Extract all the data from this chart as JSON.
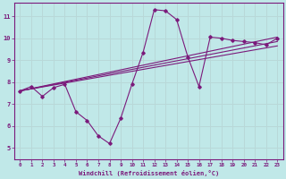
{
  "xlabel": "Windchill (Refroidissement éolien,°C)",
  "bg_color": "#c0e8e8",
  "line_color": "#7b1a7b",
  "grid_color": "#aad4d4",
  "xlim": [
    -0.5,
    23.5
  ],
  "ylim": [
    4.5,
    11.6
  ],
  "yticks": [
    5,
    6,
    7,
    8,
    9,
    10,
    11
  ],
  "xticks": [
    0,
    1,
    2,
    3,
    4,
    5,
    6,
    7,
    8,
    9,
    10,
    11,
    12,
    13,
    14,
    15,
    16,
    17,
    18,
    19,
    20,
    21,
    22,
    23
  ],
  "line1_x": [
    0,
    1,
    2,
    3,
    4,
    5,
    6,
    7,
    8,
    9,
    10,
    11,
    12,
    13,
    14,
    15,
    16,
    17,
    18,
    19,
    20,
    21,
    22,
    23
  ],
  "line1_y": [
    7.6,
    7.8,
    7.35,
    7.75,
    7.9,
    6.65,
    6.25,
    5.55,
    5.2,
    6.35,
    7.9,
    9.35,
    11.3,
    11.25,
    10.85,
    9.15,
    7.8,
    10.05,
    10.0,
    9.9,
    9.85,
    9.8,
    9.7,
    10.0
  ],
  "line2_x": [
    0,
    23
  ],
  "line2_y": [
    7.6,
    10.05
  ],
  "line3_x": [
    0,
    23
  ],
  "line3_y": [
    7.6,
    9.85
  ],
  "line4_x": [
    0,
    23
  ],
  "line4_y": [
    7.6,
    9.65
  ]
}
